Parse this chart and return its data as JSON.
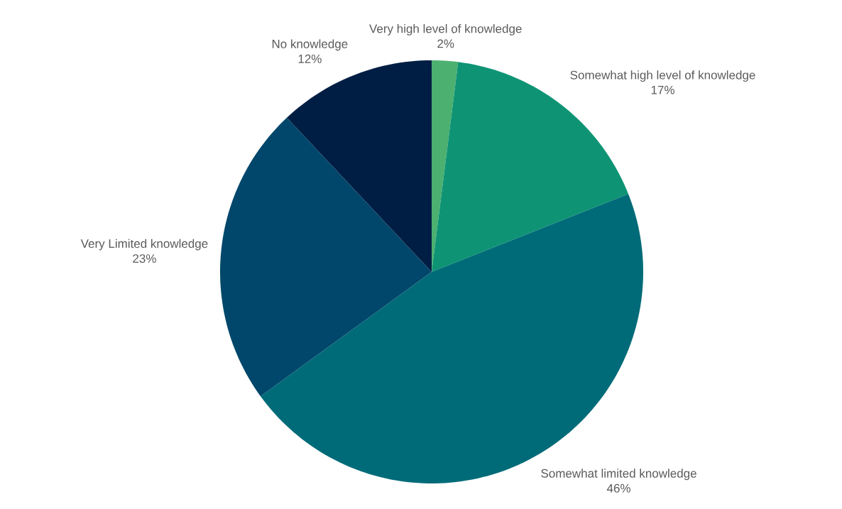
{
  "chart_data": {
    "type": "pie",
    "categories": [
      "Very high level of knowledge",
      "Somewhat high level of knowledge",
      "Somewhat limited knowledge",
      "Very Limited knowledge",
      "No knowledge"
    ],
    "values": [
      2,
      17,
      46,
      23,
      12
    ],
    "value_labels": [
      "2%",
      "17%",
      "46%",
      "23%",
      "12%"
    ],
    "colors": [
      "#4cb070",
      "#0e9474",
      "#006b78",
      "#00476b",
      "#001e44"
    ]
  }
}
